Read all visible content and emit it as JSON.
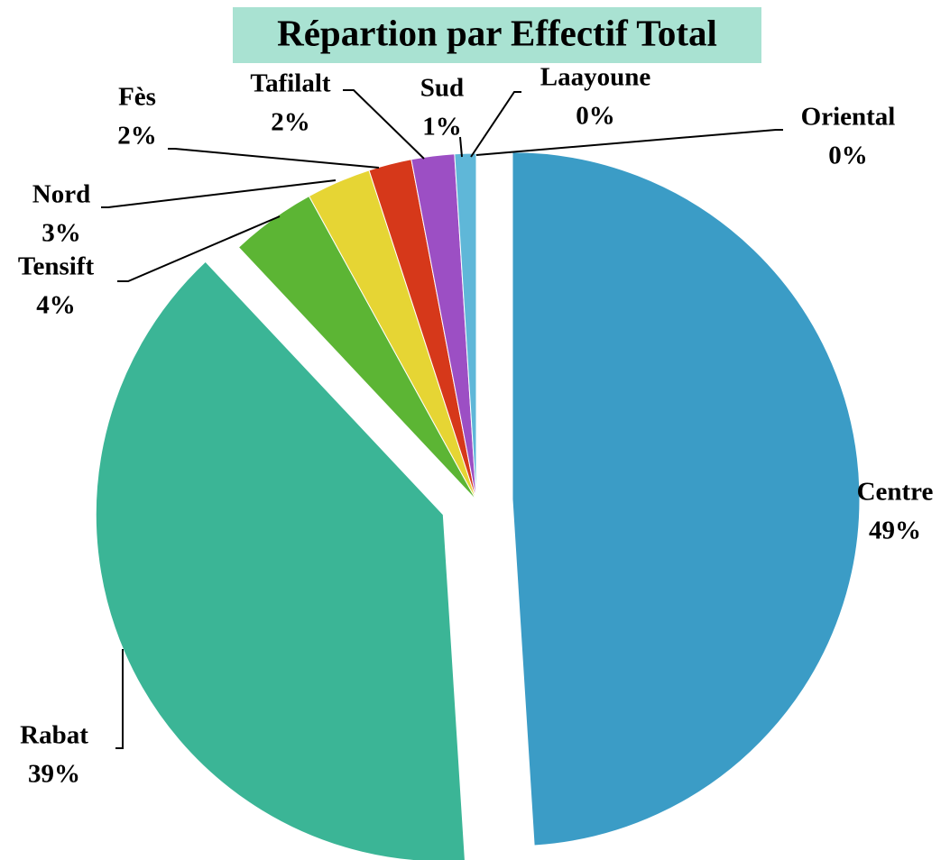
{
  "chart_data": {
    "type": "pie",
    "title": "Répartion par Effectif Total",
    "categories": [
      "Centre",
      "Rabat",
      "Tensift",
      "Nord",
      "Fès",
      "Tafilalt",
      "Sud",
      "Laayoune",
      "Oriental"
    ],
    "values": [
      49,
      39,
      4,
      3,
      2,
      2,
      1,
      0,
      0
    ],
    "value_labels": [
      "49%",
      "39%",
      "4%",
      "3%",
      "2%",
      "2%",
      "1%",
      "0%",
      "0%"
    ],
    "colors": [
      "#3b9cc6",
      "#3bb596",
      "#5cb534",
      "#e6d534",
      "#d6381a",
      "#9c4fc4",
      "#5fb7d8",
      "#a9d7e6",
      "#88c46c"
    ],
    "explode": [
      1,
      1,
      0,
      0,
      0,
      0,
      0,
      0,
      0
    ]
  }
}
